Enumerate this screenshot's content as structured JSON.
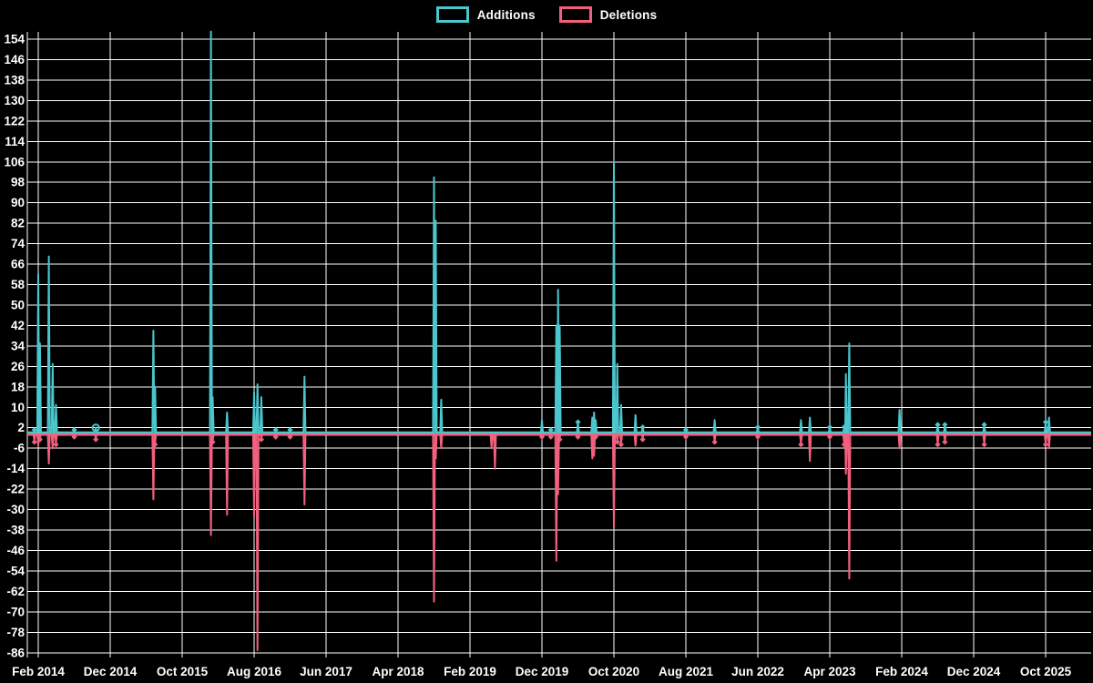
{
  "legend": {
    "items": [
      {
        "label": "Additions",
        "color": "#4ac6cc"
      },
      {
        "label": "Deletions",
        "color": "#f2607e"
      }
    ]
  },
  "chart_data": {
    "type": "line",
    "title": "",
    "description": "Weekly code additions and deletions over time (git frequency chart), spikes on a zero baseline",
    "layout": {
      "legend_position": "top",
      "grid": true,
      "background": "#000000"
    },
    "colors": {
      "background": "#000000",
      "grid": "#ffffff",
      "text": "#ffffff",
      "zero_line": "#8fa9ad"
    },
    "x_axis": {
      "labels": [
        "Feb 2014",
        "Dec 2014",
        "Oct 2015",
        "Aug 2016",
        "Jun 2017",
        "Apr 2018",
        "Feb 2019",
        "Dec 2019",
        "Oct 2020",
        "Aug 2021",
        "Jun 2022",
        "Apr 2023",
        "Feb 2024",
        "Dec 2024",
        "Oct 2025"
      ],
      "label_interval_months": 10
    },
    "y_axis": {
      "min": -86,
      "max": 154,
      "step": 8,
      "ticks": [
        154,
        146,
        138,
        130,
        122,
        114,
        106,
        98,
        90,
        82,
        74,
        66,
        58,
        50,
        42,
        34,
        26,
        18,
        10,
        2,
        -6,
        -14,
        -22,
        -30,
        -38,
        -46,
        -54,
        -62,
        -70,
        -78,
        -86
      ]
    },
    "series": [
      {
        "name": "Additions",
        "key": "additions",
        "color": "#4ac6cc"
      },
      {
        "name": "Deletions",
        "key": "deletions",
        "color": "#f2607e"
      }
    ],
    "events": [
      {
        "date": "2014-01",
        "week": 2,
        "additions": 1,
        "deletions": -3
      },
      {
        "date": "2014-02",
        "week": 0,
        "additions": 62,
        "deletions": -5
      },
      {
        "date": "2014-02",
        "week": 1,
        "additions": 35,
        "deletions": -2
      },
      {
        "date": "2014-03",
        "week": 2,
        "additions": 69,
        "deletions": -12
      },
      {
        "date": "2014-04",
        "week": 0,
        "additions": 27,
        "deletions": -6
      },
      {
        "date": "2014-04",
        "week": 2,
        "additions": 11,
        "deletions": -4
      },
      {
        "date": "2014-07",
        "week": 0,
        "additions": 1,
        "deletions": -1
      },
      {
        "date": "2014-10",
        "week": 0,
        "additions": 2,
        "deletions": -2,
        "marker": "circle"
      },
      {
        "date": "2015-06",
        "week": 0,
        "additions": 40,
        "deletions": -26
      },
      {
        "date": "2015-06",
        "week": 1,
        "additions": 18,
        "deletions": -4
      },
      {
        "date": "2016-02",
        "week": 0,
        "additions": 157,
        "deletions": -40
      },
      {
        "date": "2016-02",
        "week": 1,
        "additions": 14,
        "deletions": -3
      },
      {
        "date": "2016-04",
        "week": 1,
        "additions": 8,
        "deletions": -32
      },
      {
        "date": "2016-08",
        "week": 0,
        "additions": 16,
        "deletions": -33
      },
      {
        "date": "2016-08",
        "week": 2,
        "additions": 19,
        "deletions": -85
      },
      {
        "date": "2016-09",
        "week": 0,
        "additions": 14,
        "deletions": -2
      },
      {
        "date": "2016-11",
        "week": 0,
        "additions": 1,
        "deletions": -1
      },
      {
        "date": "2017-01",
        "week": 0,
        "additions": 1,
        "deletions": -1
      },
      {
        "date": "2017-03",
        "week": 0,
        "additions": 22,
        "deletions": -28
      },
      {
        "date": "2018-09",
        "week": 0,
        "additions": 100,
        "deletions": -66
      },
      {
        "date": "2018-09",
        "week": 1,
        "additions": 83,
        "deletions": -10
      },
      {
        "date": "2018-10",
        "week": 0,
        "additions": 13,
        "deletions": -6
      },
      {
        "date": "2019-05",
        "week": 0,
        "additions": 0,
        "deletions": -6
      },
      {
        "date": "2019-05",
        "week": 2,
        "additions": 0,
        "deletions": -14
      },
      {
        "date": "2019-12",
        "week": 0,
        "additions": 5,
        "deletions": -1
      },
      {
        "date": "2020-01",
        "week": 1,
        "additions": 1,
        "deletions": -1
      },
      {
        "date": "2020-02",
        "week": 0,
        "additions": 42,
        "deletions": -50
      },
      {
        "date": "2020-02",
        "week": 1,
        "additions": 56,
        "deletions": -24
      },
      {
        "date": "2020-02",
        "week": 2,
        "additions": 42,
        "deletions": -2
      },
      {
        "date": "2020-05",
        "week": 0,
        "additions": 4,
        "deletions": -1
      },
      {
        "date": "2020-07",
        "week": 0,
        "additions": 6,
        "deletions": -10
      },
      {
        "date": "2020-07",
        "week": 1,
        "additions": 8,
        "deletions": -9
      },
      {
        "date": "2020-07",
        "week": 2,
        "additions": 5,
        "deletions": -1
      },
      {
        "date": "2020-10",
        "week": 0,
        "additions": 106,
        "deletions": -37
      },
      {
        "date": "2020-10",
        "week": 2,
        "additions": 27,
        "deletions": -3
      },
      {
        "date": "2020-11",
        "week": 0,
        "additions": 11,
        "deletions": -4
      },
      {
        "date": "2021-01",
        "week": 0,
        "additions": 7,
        "deletions": -5
      },
      {
        "date": "2021-02",
        "week": 0,
        "additions": 2,
        "deletions": -2
      },
      {
        "date": "2021-08",
        "week": 0,
        "additions": 1,
        "deletions": -1
      },
      {
        "date": "2021-12",
        "week": 0,
        "additions": 5,
        "deletions": -3
      },
      {
        "date": "2022-06",
        "week": 0,
        "additions": 2,
        "deletions": -1
      },
      {
        "date": "2022-12",
        "week": 0,
        "additions": 5,
        "deletions": -4
      },
      {
        "date": "2023-01",
        "week": 1,
        "additions": 6,
        "deletions": -11
      },
      {
        "date": "2023-04",
        "week": 0,
        "additions": 2,
        "deletions": -1
      },
      {
        "date": "2023-06",
        "week": 0,
        "additions": 2,
        "deletions": -4
      },
      {
        "date": "2023-06",
        "week": 1,
        "additions": 23,
        "deletions": -16
      },
      {
        "date": "2023-06",
        "week": 3,
        "additions": 35,
        "deletions": -57
      },
      {
        "date": "2024-01",
        "week": 3,
        "additions": 9,
        "deletions": -6
      },
      {
        "date": "2024-07",
        "week": 0,
        "additions": 3,
        "deletions": -4
      },
      {
        "date": "2024-08",
        "week": 0,
        "additions": 3,
        "deletions": -3
      },
      {
        "date": "2025-01",
        "week": 2,
        "additions": 3,
        "deletions": -4
      },
      {
        "date": "2025-10",
        "week": 0,
        "additions": 4,
        "deletions": -4
      },
      {
        "date": "2025-10",
        "week": 2,
        "additions": 6,
        "deletions": -6
      }
    ]
  }
}
